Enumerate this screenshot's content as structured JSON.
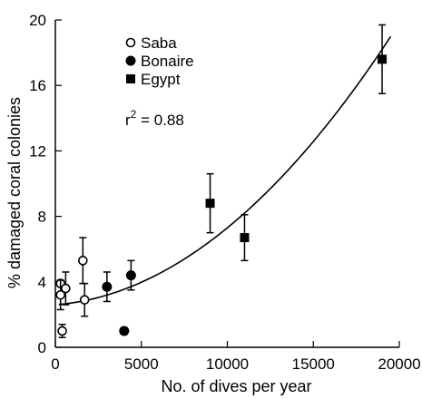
{
  "chart_data": {
    "type": "scatter",
    "xlabel": "No. of dives per year",
    "ylabel": "% damaged coral colonies",
    "xlim": [
      0,
      20000
    ],
    "ylim": [
      0,
      20
    ],
    "x_ticks": [
      0,
      5000,
      10000,
      15000,
      20000
    ],
    "y_ticks": [
      0,
      4,
      8,
      12,
      16,
      20
    ],
    "grid": false,
    "legend": "top-left",
    "series": [
      {
        "name": "Saba",
        "marker": "open-circle",
        "points": [
          {
            "x": 300,
            "y": 3.9,
            "err": 0.0
          },
          {
            "x": 300,
            "y": 3.2,
            "err": 0.9
          },
          {
            "x": 400,
            "y": 1.0,
            "err": 0.4
          },
          {
            "x": 600,
            "y": 3.6,
            "err": 1.0
          },
          {
            "x": 1600,
            "y": 5.3,
            "err": 1.4
          },
          {
            "x": 1700,
            "y": 2.9,
            "err": 1.0
          }
        ]
      },
      {
        "name": "Bonaire",
        "marker": "filled-circle",
        "points": [
          {
            "x": 3000,
            "y": 3.7,
            "err": 0.9
          },
          {
            "x": 4000,
            "y": 1.0,
            "err": 0.2
          },
          {
            "x": 4400,
            "y": 4.4,
            "err": 0.9
          }
        ]
      },
      {
        "name": "Egypt",
        "marker": "filled-square",
        "points": [
          {
            "x": 9000,
            "y": 8.8,
            "err": 1.8
          },
          {
            "x": 11000,
            "y": 6.7,
            "err": 1.4
          },
          {
            "x": 19000,
            "y": 17.6,
            "err": 2.1
          }
        ]
      }
    ],
    "fit_curve": {
      "type": "quadratic",
      "coefficients": {
        "a": 3.9e-08,
        "b": 8e-05,
        "c": 2.6
      },
      "x_range": [
        200,
        19500
      ]
    },
    "annotations": [
      {
        "label": "r",
        "superscript": "2",
        "value": " = 0.88"
      }
    ],
    "colors": {
      "ink": "#000000"
    }
  }
}
